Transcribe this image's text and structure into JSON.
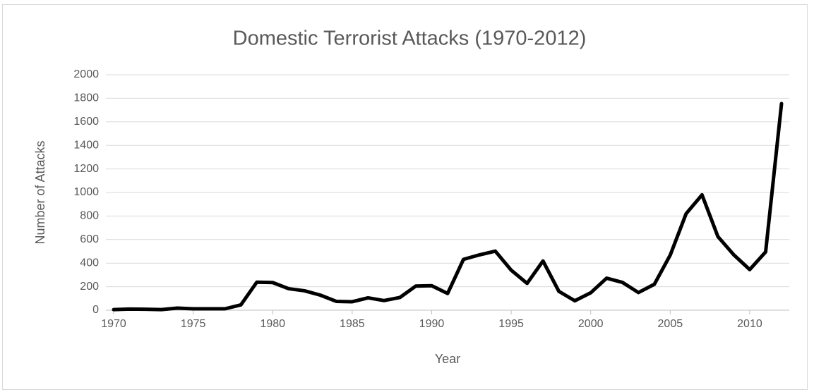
{
  "chart_data": {
    "type": "line",
    "title": "Domestic Terrorist Attacks (1970-2012)",
    "x_label": "Year",
    "y_label": "Number of Attacks",
    "x": [
      1970,
      1971,
      1972,
      1973,
      1974,
      1975,
      1976,
      1977,
      1978,
      1979,
      1980,
      1981,
      1982,
      1983,
      1984,
      1985,
      1986,
      1987,
      1988,
      1989,
      1990,
      1991,
      1992,
      1993,
      1994,
      1995,
      1996,
      1997,
      1998,
      1999,
      2000,
      2001,
      2002,
      2003,
      2004,
      2005,
      2006,
      2007,
      2008,
      2009,
      2010,
      2011,
      2012
    ],
    "series": [
      {
        "name": "Attacks",
        "color": "#000000",
        "values": [
          5,
          10,
          8,
          5,
          18,
          12,
          12,
          12,
          45,
          238,
          235,
          183,
          165,
          128,
          75,
          72,
          105,
          82,
          108,
          205,
          208,
          142,
          432,
          470,
          502,
          340,
          228,
          418,
          160,
          80,
          148,
          272,
          236,
          150,
          220,
          468,
          820,
          980,
          625,
          470,
          345,
          495,
          1755
        ]
      }
    ],
    "xlim": [
      1970,
      2012
    ],
    "xticks": [
      1970,
      1975,
      1980,
      1985,
      1990,
      1995,
      2000,
      2005,
      2010
    ],
    "ylim": [
      0,
      2000
    ],
    "yticks": [
      0,
      200,
      400,
      600,
      800,
      1000,
      1200,
      1400,
      1600,
      1800,
      2000
    ],
    "grid": true
  }
}
